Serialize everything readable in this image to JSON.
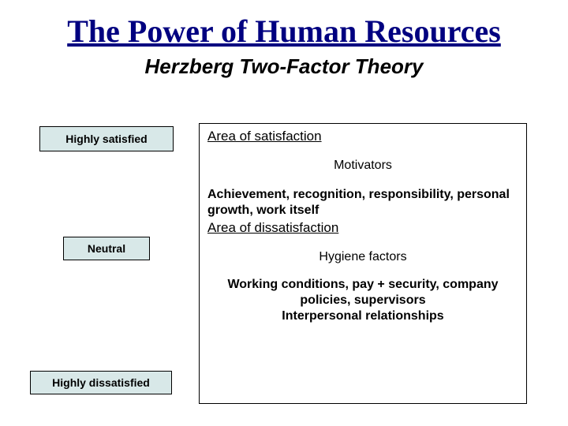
{
  "title": "The Power of Human Resources",
  "subtitle": "Herzberg Two-Factor Theory",
  "left_labels": {
    "satisfied": "Highly satisfied",
    "neutral": "Neutral",
    "dissatisfied": "Highly dissatisfied"
  },
  "main": {
    "area_satisfaction": "Area of satisfaction",
    "motivators_label": "Motivators",
    "motivators_list": "Achievement, recognition, responsibility, personal growth, work itself",
    "area_dissatisfaction": "Area of dissatisfaction",
    "hygiene_label": "Hygiene factors",
    "hygiene_list_line1": "Working conditions, pay + security, company policies, supervisors",
    "hygiene_list_line2": "Interpersonal relationships"
  },
  "colors": {
    "title_color": "#000080",
    "left_box_bg": "#d8e8e8",
    "border": "#000000",
    "text": "#000000",
    "background": "#ffffff"
  }
}
